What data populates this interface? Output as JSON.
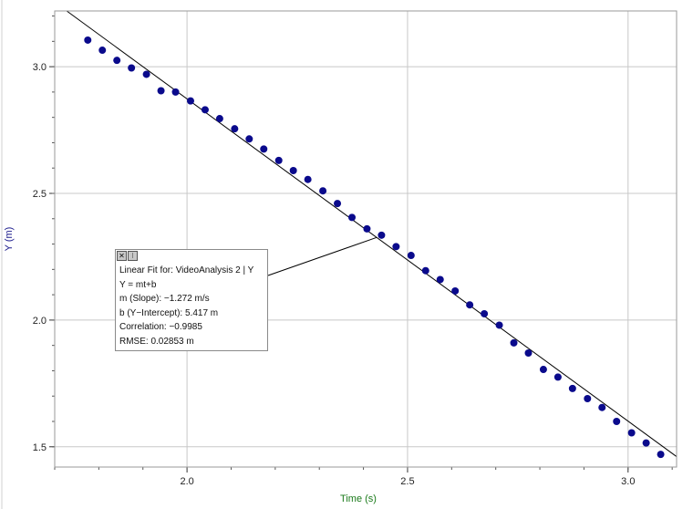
{
  "chart_data": {
    "type": "scatter",
    "xlabel": "Time (s)",
    "ylabel": "Y (m)",
    "xlim": [
      1.7,
      3.11
    ],
    "ylim": [
      1.42,
      3.22
    ],
    "x_ticks": [
      "2.0",
      "2.5",
      "3.0"
    ],
    "y_ticks": [
      "1.5",
      "2.0",
      "2.5",
      "3.0"
    ],
    "grid": true,
    "colors": {
      "points": "#0a0a8c",
      "fit_line": "#000000",
      "xlabel": "#1a7a1a",
      "ylabel": "#1a1a8c",
      "grid": "#c8c8c8"
    },
    "series": [
      {
        "x": [
          1.775,
          1.808,
          1.841,
          1.874,
          1.908,
          1.941,
          1.974,
          2.008,
          2.041,
          2.074,
          2.108,
          2.141,
          2.174,
          2.208,
          2.241,
          2.274,
          2.308,
          2.341,
          2.374,
          2.408,
          2.441,
          2.474,
          2.508,
          2.541,
          2.574,
          2.608,
          2.641,
          2.674,
          2.708,
          2.741,
          2.774,
          2.808,
          2.841,
          2.874,
          2.908,
          2.941,
          2.974,
          3.008,
          3.041,
          3.074
        ],
        "y": [
          3.105,
          3.065,
          3.025,
          2.995,
          2.97,
          2.905,
          2.9,
          2.865,
          2.83,
          2.795,
          2.755,
          2.715,
          2.675,
          2.63,
          2.59,
          2.555,
          2.51,
          2.46,
          2.405,
          2.36,
          2.335,
          2.29,
          2.255,
          2.195,
          2.16,
          2.115,
          2.06,
          2.025,
          1.98,
          1.91,
          1.87,
          1.805,
          1.775,
          1.73,
          1.69,
          1.655,
          1.6,
          1.555,
          1.515,
          1.47
        ]
      }
    ],
    "fit": {
      "slope": -1.272,
      "intercept": 5.417,
      "title": "Linear Fit for: VideoAnalysis 2 | Y",
      "equation": "Y = mt+b",
      "slope_text": "m (Slope): −1.272 m/s",
      "intercept_text": "b (Y−Intercept): 5.417 m",
      "correlation_text": "Correlation: −0.9985",
      "rmse_text": "RMSE: 0.02853 m",
      "callout_x": 2.43
    }
  }
}
